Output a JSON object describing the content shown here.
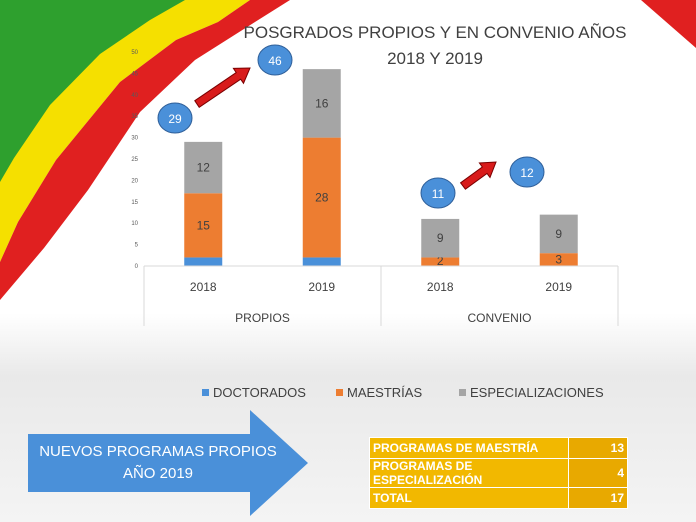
{
  "chart_data": {
    "type": "bar",
    "stacked": true,
    "title_lines": [
      "POSGRADOS PROPIOS Y EN CONVENIO AÑOS",
      "2018 Y 2019"
    ],
    "groups": [
      {
        "label": "PROPIOS",
        "categories": [
          "2018",
          "2019"
        ]
      },
      {
        "label": "CONVENIO",
        "categories": [
          "2018",
          "2019"
        ]
      }
    ],
    "series": [
      {
        "name": "DOCTORADOS",
        "color": "#4a90d9",
        "values": [
          2,
          2,
          0,
          0
        ],
        "value_labels": [
          "",
          "",
          "",
          ""
        ]
      },
      {
        "name": "MAESTRÍAS",
        "color": "#ed7d31",
        "values": [
          15,
          28,
          2,
          3
        ],
        "value_labels": [
          "15",
          "28",
          "2",
          "3"
        ]
      },
      {
        "name": "ESPECIALIZACIONES",
        "color": "#a5a5a5",
        "values": [
          12,
          16,
          9,
          9
        ],
        "value_labels": [
          "12",
          "16",
          "9",
          "9"
        ]
      }
    ],
    "ylim": [
      0,
      50
    ],
    "yticks": [
      "0",
      "5",
      "10",
      "15",
      "20",
      "25",
      "30",
      "35",
      "40",
      "45",
      "50"
    ],
    "legend_position": "bottom",
    "totals": {
      "propios": [
        "29",
        "46"
      ],
      "convenio": [
        "11",
        "12"
      ]
    }
  },
  "banner": {
    "text": "NUEVOS PROGRAMAS PROPIOS AÑO 2019",
    "color": "#4a90d9"
  },
  "summary_table": {
    "rows": [
      {
        "label": "PROGRAMAS DE MAESTRÍA",
        "value": "13"
      },
      {
        "label": "PROGRAMAS DE ESPECIALIZACIÓN",
        "value": "4"
      },
      {
        "label": "TOTAL",
        "value": "17"
      }
    ]
  },
  "colors": {
    "flag_red": "#e02020",
    "flag_yellow": "#f5e000",
    "flag_green": "#2ea02e",
    "bubble": "#4a90d9",
    "trend_arrow": "#d81b1b"
  }
}
